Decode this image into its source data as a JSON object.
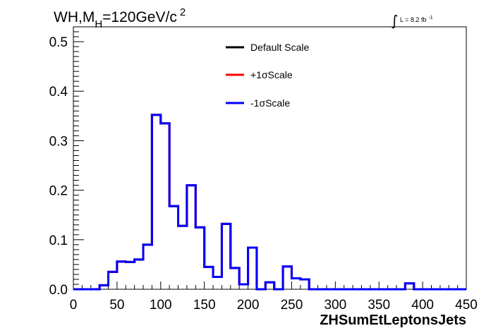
{
  "title": {
    "main": "WH,M",
    "subscript": "H",
    "value": "=120GeV/c",
    "superscript": "2"
  },
  "luminosity": {
    "integral_symbol": "∫",
    "text": "L = 8.2 fb",
    "superscript": "-1"
  },
  "chart_data": {
    "type": "line",
    "xlabel": "ZHSumEtLeptonsJets",
    "ylabel": "",
    "xlim": [
      0,
      450
    ],
    "ylim": [
      0,
      0.53
    ],
    "grid": false,
    "legend_position": "top-center",
    "x_ticks": [
      "0",
      "50",
      "100",
      "150",
      "200",
      "250",
      "300",
      "350",
      "400",
      "450"
    ],
    "y_ticks": [
      "0.0",
      "0.1",
      "0.2",
      "0.3",
      "0.4",
      "0.5"
    ],
    "bin_edges": [
      0,
      10,
      20,
      30,
      40,
      50,
      60,
      70,
      80,
      90,
      100,
      110,
      120,
      130,
      140,
      150,
      160,
      170,
      180,
      190,
      200,
      210,
      220,
      230,
      240,
      250,
      260,
      270,
      280,
      290,
      300,
      310,
      320,
      330,
      340,
      350,
      360,
      370,
      380,
      390,
      400,
      410,
      420,
      430,
      440,
      450
    ],
    "series": [
      {
        "name": "Default Scale",
        "color": "#000000",
        "values": [
          0,
          0,
          0,
          0.008,
          0.035,
          0.056,
          0.055,
          0.06,
          0.09,
          0.352,
          0.335,
          0.168,
          0.128,
          0.21,
          0.125,
          0.045,
          0.025,
          0.132,
          0.043,
          0.01,
          0.084,
          0,
          0.014,
          0,
          0.046,
          0.022,
          0.02,
          0,
          0,
          0,
          0,
          0,
          0,
          0,
          0,
          0,
          0,
          0,
          0.012,
          0,
          0,
          0,
          0,
          0,
          0
        ]
      },
      {
        "name": "+1σScale",
        "color": "#ff0000",
        "values": [
          0,
          0,
          0,
          0.008,
          0.035,
          0.056,
          0.055,
          0.06,
          0.09,
          0.352,
          0.335,
          0.168,
          0.128,
          0.21,
          0.125,
          0.045,
          0.025,
          0.132,
          0.043,
          0.01,
          0.084,
          0,
          0.014,
          0,
          0.046,
          0.022,
          0.02,
          0,
          0,
          0,
          0,
          0,
          0,
          0,
          0,
          0,
          0,
          0,
          0.012,
          0,
          0,
          0,
          0,
          0,
          0
        ]
      },
      {
        "name": "-1σScale",
        "color": "#0000ff",
        "values": [
          0,
          0,
          0,
          0.008,
          0.035,
          0.056,
          0.055,
          0.06,
          0.09,
          0.352,
          0.335,
          0.168,
          0.128,
          0.21,
          0.125,
          0.045,
          0.025,
          0.132,
          0.043,
          0.01,
          0.084,
          0,
          0.014,
          0,
          0.046,
          0.022,
          0.02,
          0,
          0,
          0,
          0,
          0,
          0,
          0,
          0,
          0,
          0,
          0,
          0.012,
          0,
          0,
          0,
          0,
          0,
          0
        ]
      }
    ]
  }
}
